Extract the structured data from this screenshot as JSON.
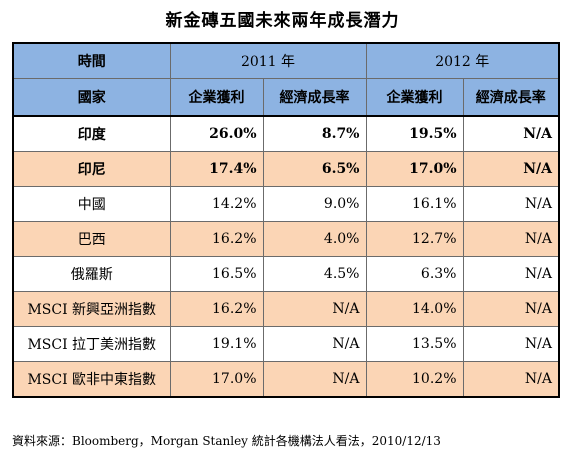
{
  "title": "新金磚五國未來兩年成長潛力",
  "header": {
    "time_label": "時間",
    "year_2011": "2011 年",
    "year_2012": "2012 年",
    "country_label": "國家",
    "col_profit_2011": "企業獲利",
    "col_growth_2011": "經濟成長率",
    "col_profit_2012": "企業獲利",
    "col_growth_2012": "經濟成長率"
  },
  "rows": [
    {
      "country": "印度",
      "p2011": "26.0%",
      "g2011": "8.7%",
      "p2012": "19.5%",
      "g2012": "N/A"
    },
    {
      "country": "印尼",
      "p2011": "17.4%",
      "g2011": "6.5%",
      "p2012": "17.0%",
      "g2012": "N/A"
    },
    {
      "country": "中國",
      "p2011": "14.2%",
      "g2011": "9.0%",
      "p2012": "16.1%",
      "g2012": "N/A"
    },
    {
      "country": "巴西",
      "p2011": "16.2%",
      "g2011": "4.0%",
      "p2012": "12.7%",
      "g2012": "N/A"
    },
    {
      "country": "俄羅斯",
      "p2011": "16.5%",
      "g2011": "4.5%",
      "p2012": "6.3%",
      "g2012": "N/A"
    },
    {
      "country": "MSCI 新興亞洲指數",
      "p2011": "16.2%",
      "g2011": "N/A",
      "p2012": "14.0%",
      "g2012": "N/A"
    },
    {
      "country": "MSCI 拉丁美洲指數",
      "p2011": "19.1%",
      "g2011": "N/A",
      "p2012": "13.5%",
      "g2012": "N/A"
    },
    {
      "country": "MSCI 歐非中東指數",
      "p2011": "17.0%",
      "g2011": "N/A",
      "p2012": "10.2%",
      "g2012": "N/A"
    }
  ],
  "source": "資料來源：Bloomberg，Morgan Stanley 統計各機構法人看法，2010/12/13",
  "colors": {
    "header_bg": "#8db3e2",
    "peach_row": "#fbd5b5",
    "white_row": "#ffffff"
  }
}
